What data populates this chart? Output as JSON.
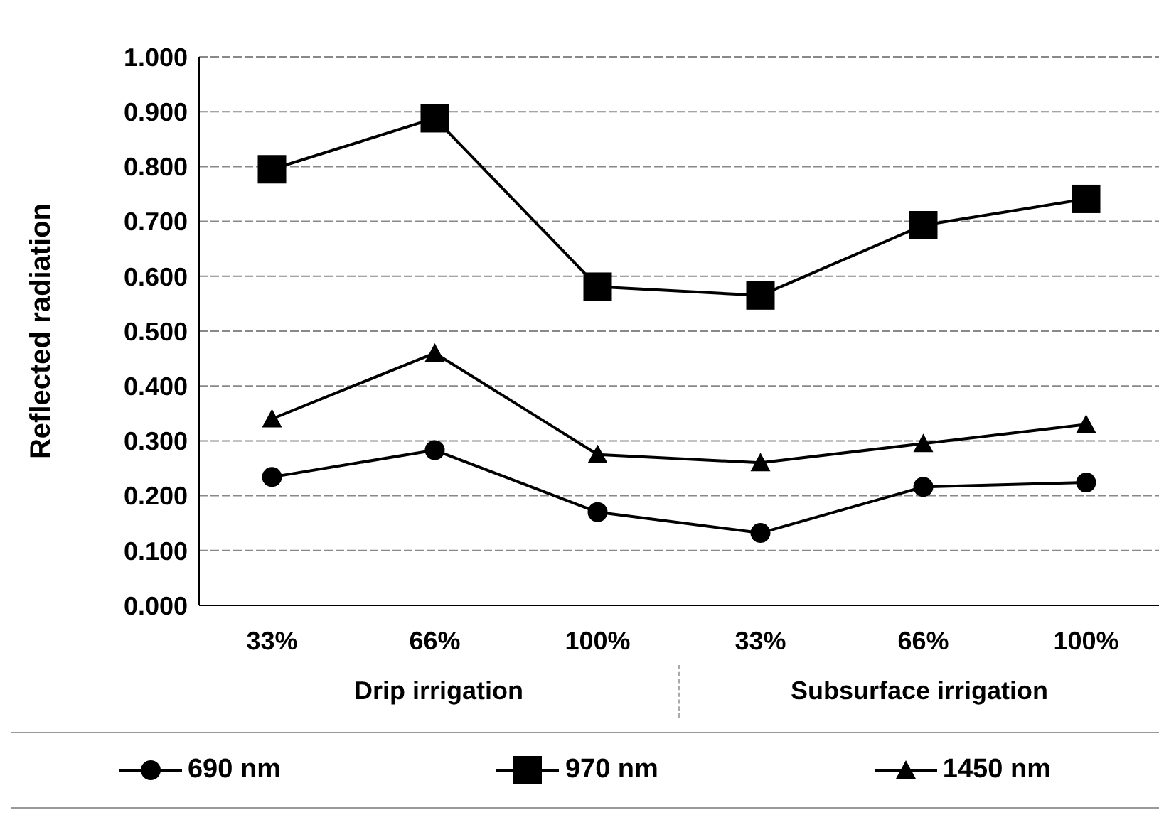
{
  "chart_data": {
    "type": "line",
    "ylabel": "Reflected radiation",
    "categories": [
      "33%",
      "66%",
      "100%",
      "33%",
      "66%",
      "100%"
    ],
    "annotations": [
      "Drip irrigation",
      "Subsurface irrigation"
    ],
    "ylim": [
      0,
      1
    ],
    "yticks": [
      {
        "value": 0,
        "label": "0.000"
      },
      {
        "value": 0.1,
        "label": "0.100"
      },
      {
        "value": 0.2,
        "label": "0.200"
      },
      {
        "value": 0.3,
        "label": "0.300"
      },
      {
        "value": 0.4,
        "label": "0.400"
      },
      {
        "value": 0.5,
        "label": "0.500"
      },
      {
        "value": 0.6,
        "label": "0.600"
      },
      {
        "value": 0.7,
        "label": "0.700"
      },
      {
        "value": 0.8,
        "label": "0.800"
      },
      {
        "value": 0.9,
        "label": "0.900"
      },
      {
        "value": 1,
        "label": "1.000"
      }
    ],
    "grid": "y",
    "legend": "bottom",
    "series": [
      {
        "name": "690 nm",
        "color": "#000000",
        "marker": "circle",
        "values": [
          0.234,
          0.283,
          0.17,
          0.132,
          0.216,
          0.224
        ]
      },
      {
        "name": "970 nm",
        "color": "#000000",
        "marker": "square",
        "values": [
          0.795,
          0.888,
          0.581,
          0.565,
          0.693,
          0.741
        ]
      },
      {
        "name": "1450 nm",
        "color": "#000000",
        "marker": "triangle",
        "values": [
          0.34,
          0.46,
          0.275,
          0.26,
          0.295,
          0.33
        ]
      }
    ]
  }
}
